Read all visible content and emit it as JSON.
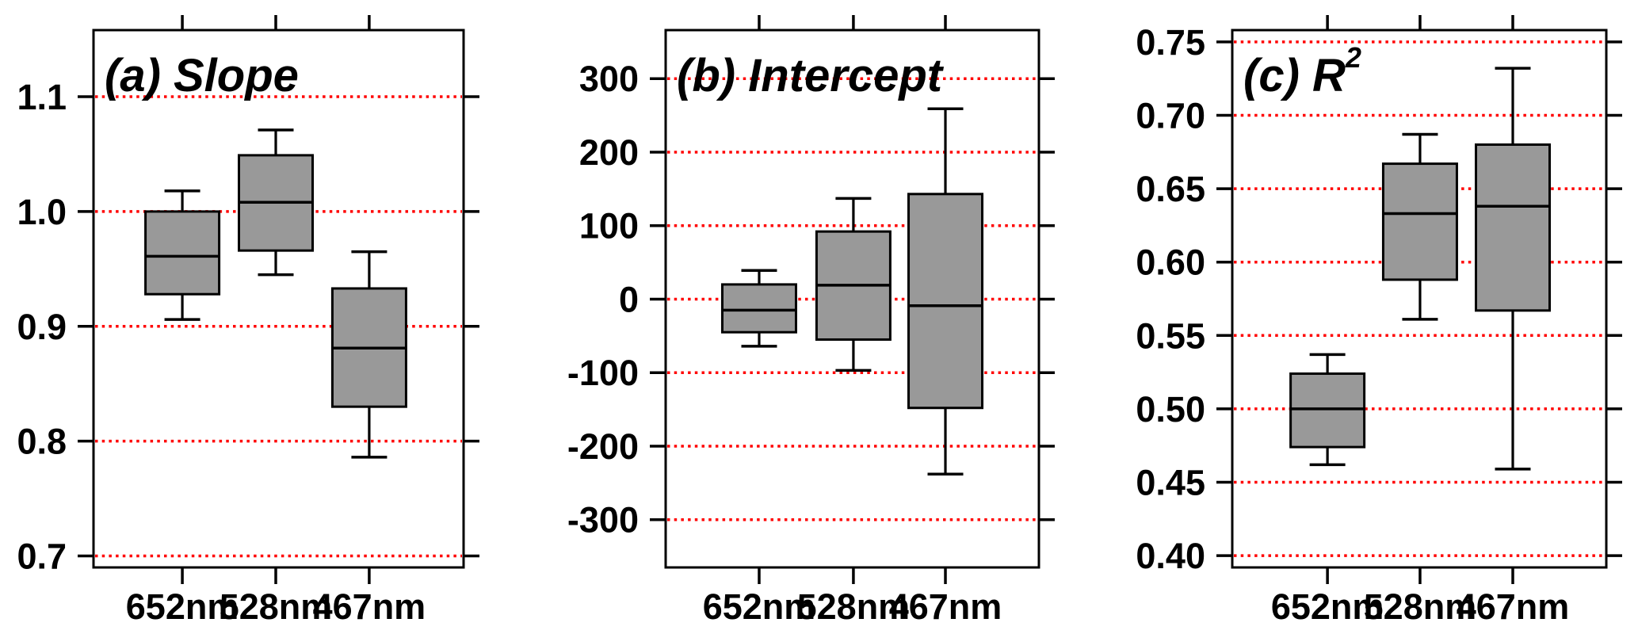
{
  "figure": {
    "background_color": "#ffffff",
    "box_fill_color": "#999999",
    "box_border_color": "#000000",
    "gridline_color": "#ff0000",
    "axis_color": "#000000",
    "text_color": "#000000"
  },
  "chart_data": [
    {
      "type": "box",
      "title": "(a) Slope",
      "title_sup": "",
      "categories": [
        "652nm",
        "528nm",
        "467nm"
      ],
      "ylim": [
        0.69,
        1.158
      ],
      "yticks": [
        0.7,
        0.8,
        0.9,
        1.0,
        1.1
      ],
      "ytick_labels": [
        "0.7",
        "0.8",
        "0.9",
        "1.0",
        "1.1"
      ],
      "grid": true,
      "gridline_style": "dotted",
      "legend": "none",
      "boxes": [
        {
          "category": "652nm",
          "whisker_low": 0.906,
          "q1": 0.928,
          "median": 0.961,
          "q3": 1.0,
          "whisker_high": 1.018
        },
        {
          "category": "528nm",
          "whisker_low": 0.945,
          "q1": 0.966,
          "median": 1.008,
          "q3": 1.049,
          "whisker_high": 1.071
        },
        {
          "category": "467nm",
          "whisker_low": 0.786,
          "q1": 0.83,
          "median": 0.881,
          "q3": 0.933,
          "whisker_high": 0.965
        }
      ]
    },
    {
      "type": "box",
      "title": "(b) Intercept",
      "title_sup": "",
      "categories": [
        "652nm",
        "528nm",
        "467nm"
      ],
      "ylim": [
        -365,
        366
      ],
      "yticks": [
        -300,
        -200,
        -100,
        0,
        100,
        200,
        300
      ],
      "ytick_labels": [
        "-300",
        "-200",
        "-100",
        "0",
        "100",
        "200",
        "300"
      ],
      "grid": true,
      "gridline_style": "dotted",
      "legend": "none",
      "boxes": [
        {
          "category": "652nm",
          "whisker_low": -64,
          "q1": -45,
          "median": -15,
          "q3": 20,
          "whisker_high": 39
        },
        {
          "category": "528nm",
          "whisker_low": -97,
          "q1": -55,
          "median": 19,
          "q3": 92,
          "whisker_high": 137
        },
        {
          "category": "467nm",
          "whisker_low": -238,
          "q1": -148,
          "median": -9,
          "q3": 143,
          "whisker_high": 259
        }
      ]
    },
    {
      "type": "box",
      "title": "(c) R",
      "title_sup": "2",
      "categories": [
        "652nm",
        "528nm",
        "467nm"
      ],
      "ylim": [
        0.392,
        0.758
      ],
      "yticks": [
        0.4,
        0.45,
        0.5,
        0.55,
        0.6,
        0.65,
        0.7,
        0.75
      ],
      "ytick_labels": [
        "0.40",
        "0.45",
        "0.50",
        "0.55",
        "0.60",
        "0.65",
        "0.70",
        "0.75"
      ],
      "grid": true,
      "gridline_style": "dotted",
      "legend": "none",
      "boxes": [
        {
          "category": "652nm",
          "whisker_low": 0.462,
          "q1": 0.474,
          "median": 0.5,
          "q3": 0.524,
          "whisker_high": 0.537
        },
        {
          "category": "528nm",
          "whisker_low": 0.561,
          "q1": 0.588,
          "median": 0.633,
          "q3": 0.667,
          "whisker_high": 0.687
        },
        {
          "category": "467nm",
          "whisker_low": 0.459,
          "q1": 0.567,
          "median": 0.638,
          "q3": 0.68,
          "whisker_high": 0.732
        }
      ]
    }
  ]
}
